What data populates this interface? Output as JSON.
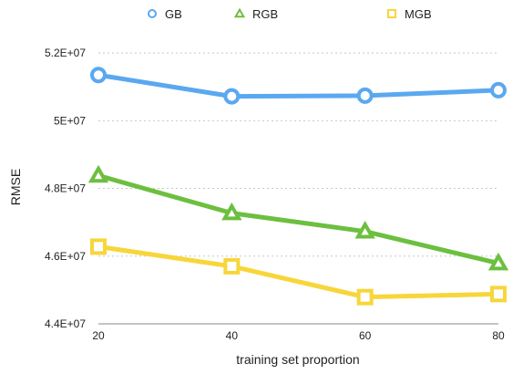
{
  "chart_data": {
    "type": "line",
    "title": "",
    "xlabel": "training set proportion",
    "ylabel": "RMSE",
    "x": [
      20,
      40,
      60,
      80
    ],
    "x_tick_labels": [
      "20",
      "40",
      "60",
      "80"
    ],
    "y_tick_values": [
      44000000,
      46000000,
      48000000,
      50000000,
      52000000
    ],
    "y_tick_labels": [
      "4.4E+07",
      "4.6E+07",
      "4.8E+07",
      "5E+07",
      "5.2E+07"
    ],
    "ylim": [
      44000000,
      53000000
    ],
    "grid": "horizontal dotted",
    "legend_position": "top",
    "series": [
      {
        "name": "GB",
        "marker": "circle",
        "color": "#5aa8f0",
        "values": [
          51350000,
          50720000,
          50740000,
          50900000
        ]
      },
      {
        "name": "RGB",
        "marker": "triangle",
        "color": "#6cbf3f",
        "values": [
          48380000,
          47270000,
          46730000,
          45790000
        ]
      },
      {
        "name": "MGB",
        "marker": "square",
        "color": "#f7d63a",
        "values": [
          46280000,
          45700000,
          44790000,
          44880000
        ]
      }
    ]
  }
}
